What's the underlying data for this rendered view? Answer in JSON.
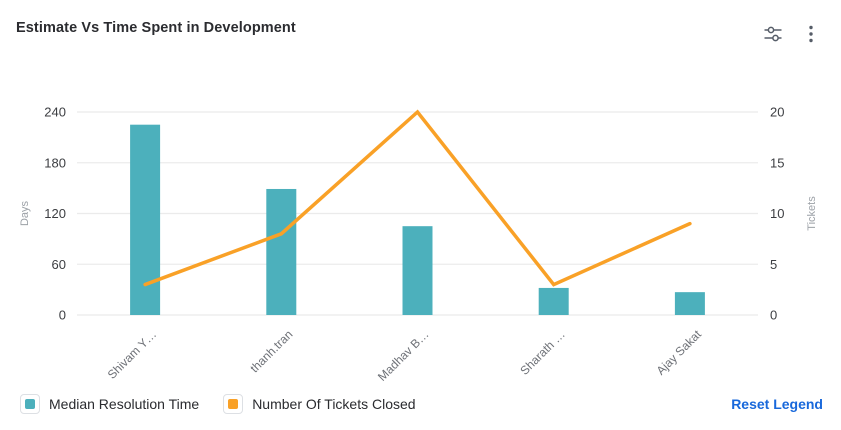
{
  "header": {
    "title": "Estimate Vs Time Spent in Development"
  },
  "chart_data": {
    "type": "combo",
    "title": "Estimate Vs Time Spent in Development",
    "categories": [
      "Shivam Y…",
      "thanh.tran",
      "Madhav B…",
      "Sharath …",
      "Ajay Sakat"
    ],
    "series": [
      {
        "name": "Median Resolution Time",
        "type": "bar",
        "yaxis": "left",
        "color": "#4CB0BC",
        "values": [
          225,
          149,
          105,
          32,
          27
        ]
      },
      {
        "name": "Number Of Tickets Closed",
        "type": "line",
        "yaxis": "right",
        "color": "#F9A127",
        "values": [
          3,
          8,
          20,
          3,
          9
        ]
      }
    ],
    "left_axis": {
      "name": "Days",
      "ticks": [
        0,
        60,
        120,
        180,
        240
      ],
      "min": 0,
      "max": 240
    },
    "right_axis": {
      "name": "Tickets",
      "ticks": [
        0,
        5,
        10,
        15,
        20
      ],
      "min": 0,
      "max": 20
    },
    "grid": true,
    "x_label_rotation": -45,
    "legend_position": "bottom-left"
  },
  "legend": {
    "items": [
      {
        "label": "Median Resolution Time",
        "color": "#4CB0BC"
      },
      {
        "label": "Number Of Tickets Closed",
        "color": "#F9A127"
      }
    ],
    "reset_label": "Reset Legend"
  },
  "accents": {
    "bar_color": "#4CB0BC",
    "line_color": "#F9A127",
    "link_color": "#1868DB",
    "grid_color": "#ebebeb"
  }
}
